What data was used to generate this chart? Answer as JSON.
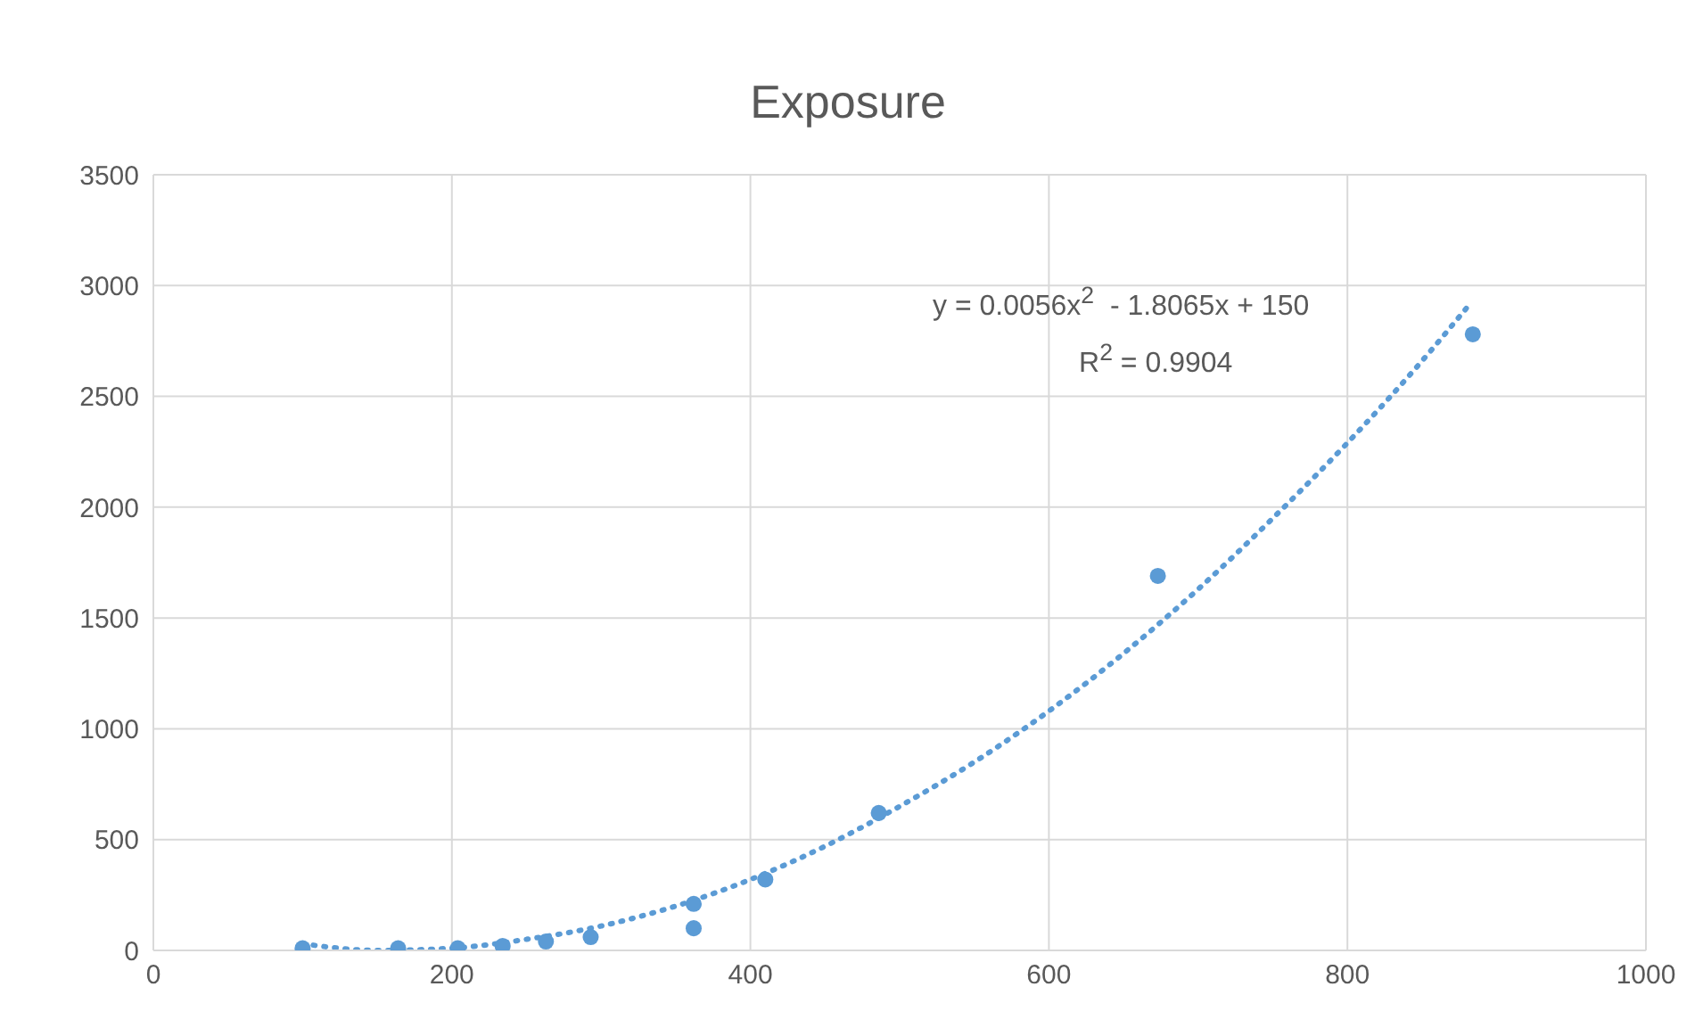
{
  "chart_data": {
    "type": "scatter",
    "title": "Exposure",
    "xlim": [
      0,
      1000
    ],
    "xticks": [
      0,
      200,
      400,
      600,
      800,
      1000
    ],
    "ylim": [
      0,
      3500
    ],
    "yticks": [
      0,
      500,
      1000,
      1500,
      2000,
      2500,
      3000,
      3500
    ],
    "grid": true,
    "annotations": [
      "y = 0.0056x$^{2}$  - 1.8065x + 150",
      "R$^{2}$ = 0.9904"
    ],
    "series": [
      {
        "color": "#5b9bd5",
        "marker": "circle",
        "x": [
          100,
          164,
          204,
          234,
          263,
          293,
          362,
          362,
          410,
          486,
          673,
          884
        ],
        "values": [
          10,
          10,
          10,
          20,
          40,
          60,
          100,
          210,
          320,
          620,
          1690,
          2780
        ]
      },
      {
        "type": "line",
        "color": "#5b9bd5",
        "line_style": "dotted",
        "marker": "none",
        "x": [
          100,
          150,
          200,
          250,
          300,
          350,
          400,
          450,
          500,
          550,
          600,
          650,
          700,
          750,
          800,
          850,
          880
        ],
        "values": [
          30,
          0,
          10,
          50,
          110,
          200,
          320,
          470,
          650,
          850,
          1080,
          1340,
          1630,
          1950,
          2290,
          2660,
          2900
        ]
      }
    ]
  }
}
